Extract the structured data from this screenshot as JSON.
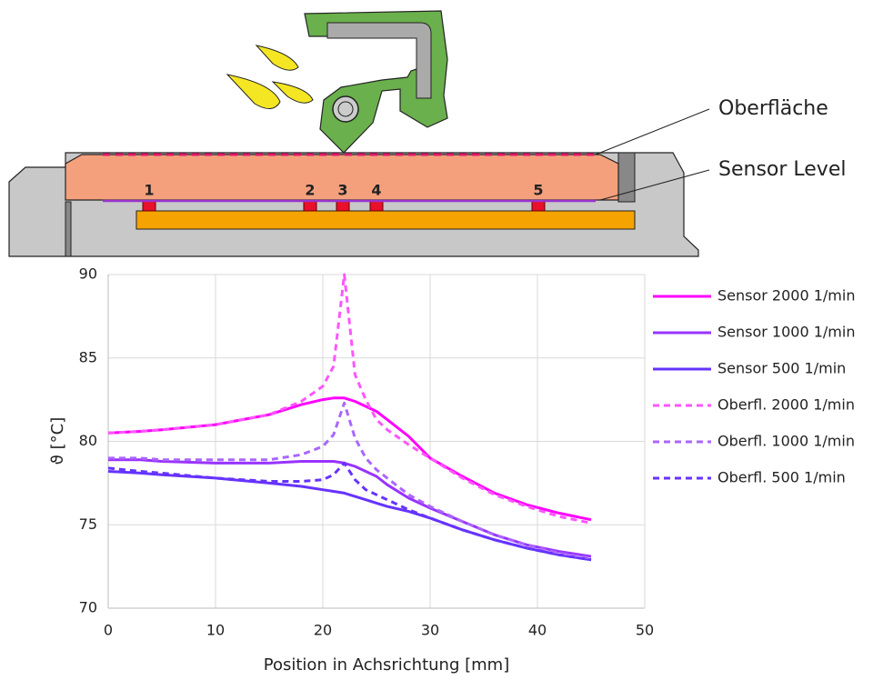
{
  "diagram": {
    "callouts": [
      "Oberfläche",
      "Sensor Level"
    ],
    "sensors": [
      "1",
      "2",
      "3",
      "4",
      "5"
    ]
  },
  "chart_data": {
    "type": "line",
    "x_label": "Position in Achsrichtung [mm]",
    "y_label": "ϑ [°C]",
    "x": [
      0,
      3,
      5,
      10,
      15,
      18,
      20,
      21,
      22,
      23,
      24,
      25,
      26,
      28,
      30,
      33,
      36,
      39,
      42,
      45
    ],
    "series": [
      {
        "name": "Sensor 2000 1/min",
        "color": "#ff00ff",
        "line_style": "solid",
        "values": [
          80.5,
          80.6,
          80.7,
          81.0,
          81.6,
          82.2,
          82.5,
          82.6,
          82.6,
          82.4,
          82.1,
          81.8,
          81.3,
          80.3,
          79.0,
          77.9,
          76.9,
          76.2,
          75.7,
          75.3
        ]
      },
      {
        "name": "Sensor 1000 1/min",
        "color": "#9933ff",
        "line_style": "solid",
        "values": [
          78.9,
          78.9,
          78.8,
          78.7,
          78.7,
          78.8,
          78.8,
          78.8,
          78.7,
          78.5,
          78.2,
          77.9,
          77.4,
          76.6,
          76.0,
          75.2,
          74.4,
          73.8,
          73.4,
          73.1
        ]
      },
      {
        "name": "Sensor 500 1/min",
        "color": "#6633ff",
        "line_style": "solid",
        "values": [
          78.2,
          78.1,
          78.0,
          77.8,
          77.5,
          77.3,
          77.1,
          77.0,
          76.9,
          76.7,
          76.5,
          76.3,
          76.1,
          75.8,
          75.4,
          74.7,
          74.1,
          73.6,
          73.2,
          72.9
        ]
      },
      {
        "name": "Oberfl. 2000 1/min",
        "color": "#ff55ff",
        "line_style": "dashed",
        "values": [
          80.5,
          80.6,
          80.7,
          81.0,
          81.6,
          82.4,
          83.3,
          84.5,
          90,
          84.0,
          82.5,
          81.3,
          80.7,
          79.8,
          79.0,
          77.8,
          76.8,
          76.1,
          75.5,
          75.1
        ]
      },
      {
        "name": "Oberfl. 1000 1/min",
        "color": "#aa66ff",
        "line_style": "dashed",
        "values": [
          79.0,
          79.0,
          78.9,
          78.9,
          78.9,
          79.2,
          79.7,
          80.4,
          82.3,
          80.2,
          79.0,
          78.3,
          77.8,
          76.8,
          76.1,
          75.2,
          74.4,
          73.8,
          73.3,
          73.0
        ]
      },
      {
        "name": "Oberfl. 500 1/min",
        "color": "#6633ff",
        "line_style": "dashed",
        "values": [
          78.4,
          78.2,
          78.1,
          77.8,
          77.6,
          77.6,
          77.7,
          78.0,
          78.7,
          77.7,
          77.1,
          76.8,
          76.5,
          75.9,
          75.4,
          74.7,
          74.1,
          73.6,
          73.2,
          72.9
        ]
      }
    ],
    "xlim": [
      0,
      50
    ],
    "xticks": [
      0,
      10,
      20,
      30,
      40,
      50
    ],
    "ylim": [
      70,
      90
    ],
    "yticks": [
      70,
      75,
      80,
      85,
      90
    ],
    "grid": true,
    "legend": "right"
  }
}
